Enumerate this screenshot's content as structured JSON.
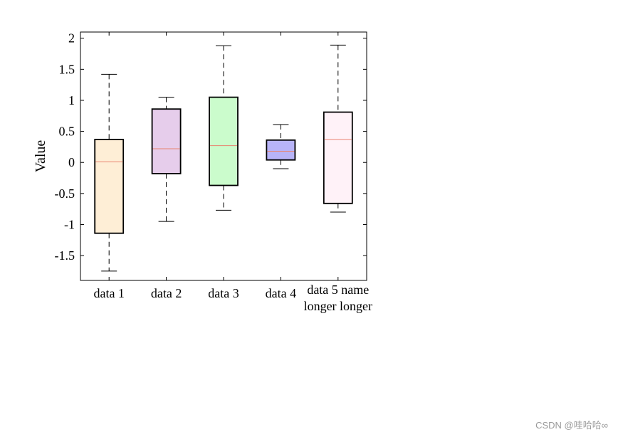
{
  "chart_data": {
    "type": "box",
    "title": "",
    "xlabel": "",
    "ylabel": "Value",
    "ylim": [
      -1.9,
      2.1
    ],
    "yticks": [
      -1.5,
      -1,
      -0.5,
      0,
      0.5,
      1,
      1.5,
      2
    ],
    "ytick_labels": [
      "-1.5",
      "-1",
      "-0.5",
      "0",
      "0.5",
      "1",
      "1.5",
      "2"
    ],
    "grid": false,
    "categories": [
      {
        "lines": [
          "data 1"
        ]
      },
      {
        "lines": [
          "data 2"
        ]
      },
      {
        "lines": [
          "data 3"
        ]
      },
      {
        "lines": [
          "data 4"
        ]
      },
      {
        "lines": [
          "data 5 name",
          "longer longer"
        ]
      }
    ],
    "boxes": [
      {
        "whisker_low": -1.75,
        "q1": -1.14,
        "median": 0.01,
        "q3": 0.37,
        "whisker_high": 1.42,
        "fill": "#feeed6",
        "median_color": "#e8836f"
      },
      {
        "whisker_low": -0.95,
        "q1": -0.18,
        "median": 0.22,
        "q3": 0.86,
        "whisker_high": 1.05,
        "fill": "#e6cdeb",
        "median_color": "#e8836f"
      },
      {
        "whisker_low": -0.77,
        "q1": -0.37,
        "median": 0.27,
        "q3": 1.05,
        "whisker_high": 1.88,
        "fill": "#cbfccc",
        "median_color": "#e8836f"
      },
      {
        "whisker_low": -0.1,
        "q1": 0.04,
        "median": 0.18,
        "q3": 0.36,
        "whisker_high": 0.61,
        "fill": "#b8b4f8",
        "median_color": "#e8836f"
      },
      {
        "whisker_low": -0.8,
        "q1": -0.66,
        "median": 0.37,
        "q3": 0.81,
        "whisker_high": 1.89,
        "fill": "#fff2f8",
        "median_color": "#e8836f"
      }
    ]
  },
  "watermark": "CSDN @哇哈哈∞"
}
